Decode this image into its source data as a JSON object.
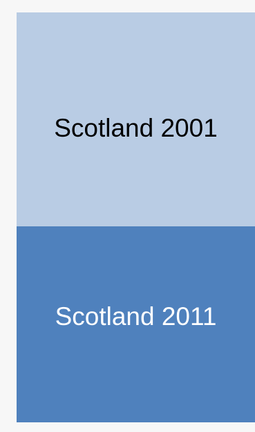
{
  "panels": {
    "top": {
      "label": "Scotland 2001",
      "background_color": "#b9cce4",
      "text_color": "#000000"
    },
    "bottom": {
      "label": "Scotland 2011",
      "background_color": "#4f81bd",
      "text_color": "#ffffff"
    }
  }
}
